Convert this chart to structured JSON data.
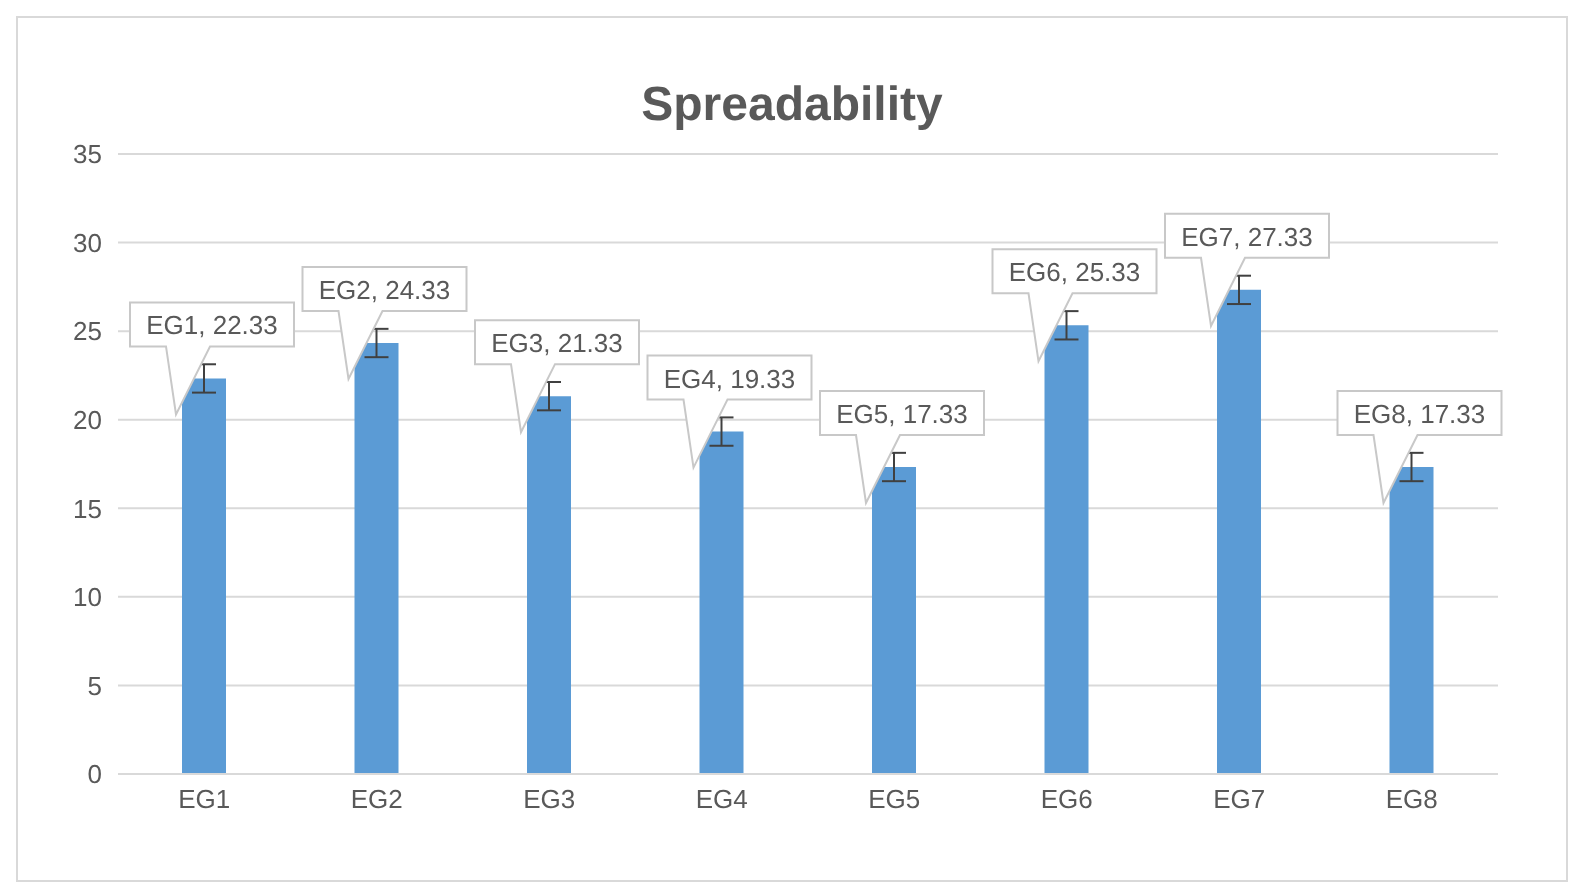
{
  "chart_data": {
    "type": "bar",
    "title": "Spreadability",
    "categories": [
      "EG1",
      "EG2",
      "EG3",
      "EG4",
      "EG5",
      "EG6",
      "EG7",
      "EG8"
    ],
    "values": [
      22.33,
      24.33,
      21.33,
      19.33,
      17.33,
      25.33,
      27.33,
      17.33
    ],
    "errors": [
      0.8,
      0.8,
      0.8,
      0.8,
      0.8,
      0.8,
      0.8,
      0.8
    ],
    "value_labels": [
      "EG1, 22.33",
      "EG2, 24.33",
      "EG3, 21.33",
      "EG4, 19.33",
      "EG5, 17.33",
      "EG6, 25.33",
      "EG7, 27.33",
      "EG8, 17.33"
    ],
    "color": "#5b9bd5",
    "ylim": [
      0,
      35
    ],
    "yticks": [
      0,
      5,
      10,
      15,
      20,
      25,
      30,
      35
    ],
    "grid": "y"
  }
}
